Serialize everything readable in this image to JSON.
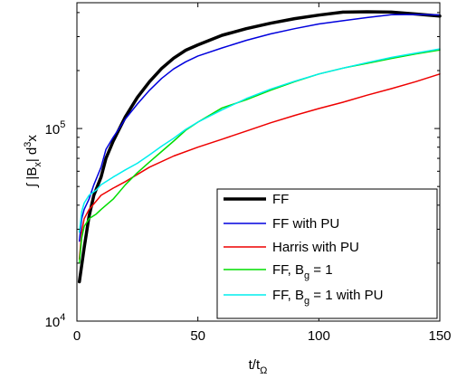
{
  "chart_data": {
    "type": "line",
    "title": "",
    "xlabel": "t/t",
    "xlabel_subscript": "Ω",
    "ylabel": "∫ |B",
    "ylabel_subscript": "x",
    "ylabel_tail": "| d",
    "ylabel_superscript": "3",
    "ylabel_end": "x",
    "xlim": [
      0,
      150
    ],
    "ylim": [
      10000,
      450000
    ],
    "yscale": "log",
    "grid": false,
    "legend_position": "bottom-right",
    "x_ticks": [
      {
        "value": 0,
        "label": "0"
      },
      {
        "value": 50,
        "label": "50"
      },
      {
        "value": 100,
        "label": "100"
      },
      {
        "value": 150,
        "label": "150"
      }
    ],
    "y_ticks": [
      {
        "value": 10000,
        "base": "10",
        "exp": "4"
      },
      {
        "value": 100000,
        "base": "10",
        "exp": "5"
      }
    ],
    "series": [
      {
        "name": "FF",
        "color": "#000000",
        "width": 3.5,
        "x": [
          1,
          3,
          5,
          7,
          10,
          12,
          15,
          20,
          25,
          30,
          35,
          40,
          45,
          50,
          60,
          70,
          80,
          90,
          100,
          110,
          120,
          130,
          140,
          150
        ],
        "y": [
          16000,
          24000,
          35000,
          45000,
          56000,
          70000,
          86000,
          115000,
          145000,
          175000,
          205000,
          232000,
          255000,
          272000,
          305000,
          330000,
          352000,
          372000,
          388000,
          402000,
          404000,
          402000,
          393000,
          384000
        ]
      },
      {
        "name": "FF with PU",
        "color": "#0000dd",
        "width": 1.5,
        "x": [
          1,
          2,
          3,
          5,
          7,
          10,
          12,
          15,
          20,
          25,
          30,
          35,
          40,
          45,
          50,
          60,
          70,
          80,
          90,
          100,
          110,
          120,
          130,
          140,
          150
        ],
        "y": [
          26000,
          34000,
          38000,
          43000,
          51000,
          63000,
          78000,
          90000,
          112000,
          134000,
          158000,
          182000,
          204000,
          222000,
          238000,
          262000,
          287000,
          310000,
          330000,
          349000,
          363000,
          377000,
          390000,
          391000,
          389000
        ]
      },
      {
        "name": "Harris with PU",
        "color": "#ee0000",
        "width": 1.5,
        "x": [
          1,
          2,
          3,
          5,
          8,
          10,
          15,
          20,
          30,
          40,
          50,
          60,
          70,
          80,
          90,
          100,
          110,
          120,
          130,
          140,
          150
        ],
        "y": [
          21000,
          29000,
          34000,
          38000,
          42000,
          45000,
          49000,
          53000,
          63000,
          72000,
          80000,
          88000,
          97000,
          107000,
          117000,
          127000,
          137000,
          149000,
          161000,
          175000,
          192000
        ]
      },
      {
        "name": "FF, B = 1",
        "name_prefix": "FF, B",
        "name_subscript": "g",
        "name_suffix": " = 1",
        "color": "#00dd00",
        "width": 1.5,
        "x": [
          1,
          2,
          3,
          5,
          8,
          10,
          15,
          20,
          25,
          30,
          35,
          40,
          45,
          50,
          60,
          70,
          80,
          90,
          100,
          110,
          120,
          130,
          140,
          150
        ],
        "y": [
          20000,
          27000,
          31000,
          34000,
          36000,
          38000,
          43000,
          51000,
          59000,
          67000,
          76000,
          86000,
          98000,
          108000,
          128000,
          141000,
          158000,
          175000,
          192000,
          206000,
          218000,
          231000,
          244000,
          256000
        ]
      },
      {
        "name": "FF, B = 1 with PU",
        "name_prefix": "FF, B",
        "name_subscript": "g",
        "name_suffix": " = 1 with PU",
        "color": "#00eeee",
        "width": 1.5,
        "x": [
          1,
          2,
          3,
          5,
          8,
          10,
          15,
          20,
          25,
          30,
          35,
          40,
          45,
          50,
          60,
          70,
          80,
          90,
          100,
          110,
          120,
          130,
          140,
          150
        ],
        "y": [
          29000,
          37000,
          41000,
          45000,
          48000,
          51000,
          56000,
          61000,
          66000,
          73000,
          81000,
          89000,
          99000,
          108000,
          125000,
          143000,
          160000,
          176000,
          192000,
          206000,
          220000,
          234000,
          246000,
          259000
        ]
      }
    ]
  }
}
